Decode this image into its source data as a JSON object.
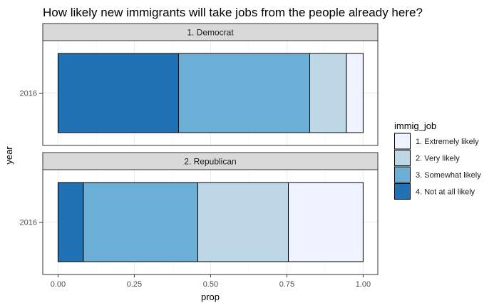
{
  "chart_data": {
    "type": "bar",
    "orientation": "horizontal",
    "stacked": true,
    "title": "How likely new immigrants will take jobs from the people already here?",
    "xlabel": "prop",
    "ylabel": "year",
    "xlim": [
      0,
      1
    ],
    "x_ticks": [
      "0.00",
      "0.25",
      "0.50",
      "0.75",
      "1.00"
    ],
    "x_tick_values": [
      0,
      0.25,
      0.5,
      0.75,
      1.0
    ],
    "grid": true,
    "legend": {
      "title": "immig_job",
      "position": "right",
      "entries": [
        "1. Extremely likely",
        "2. Very likely",
        "3. Somewhat likely",
        "4. Not at all likely"
      ]
    },
    "stack_order": [
      "4. Not at all likely",
      "3. Somewhat likely",
      "2. Very likely",
      "1. Extremely likely"
    ],
    "colors": {
      "1. Extremely likely": "#eff3ff",
      "2. Very likely": "#bdd7e7",
      "3. Somewhat likely": "#6baed6",
      "4. Not at all likely": "#2171b5"
    },
    "panels": [
      {
        "label": "1. Democrat",
        "category": "2016",
        "segments": [
          {
            "name": "4. Not at all likely",
            "value": 0.395
          },
          {
            "name": "3. Somewhat likely",
            "value": 0.43
          },
          {
            "name": "2. Very likely",
            "value": 0.12
          },
          {
            "name": "1. Extremely likely",
            "value": 0.055
          }
        ]
      },
      {
        "label": "2. Republican",
        "category": "2016",
        "segments": [
          {
            "name": "4. Not at all likely",
            "value": 0.083
          },
          {
            "name": "3. Somewhat likely",
            "value": 0.375
          },
          {
            "name": "2. Very likely",
            "value": 0.297
          },
          {
            "name": "1. Extremely likely",
            "value": 0.245
          }
        ]
      }
    ]
  }
}
